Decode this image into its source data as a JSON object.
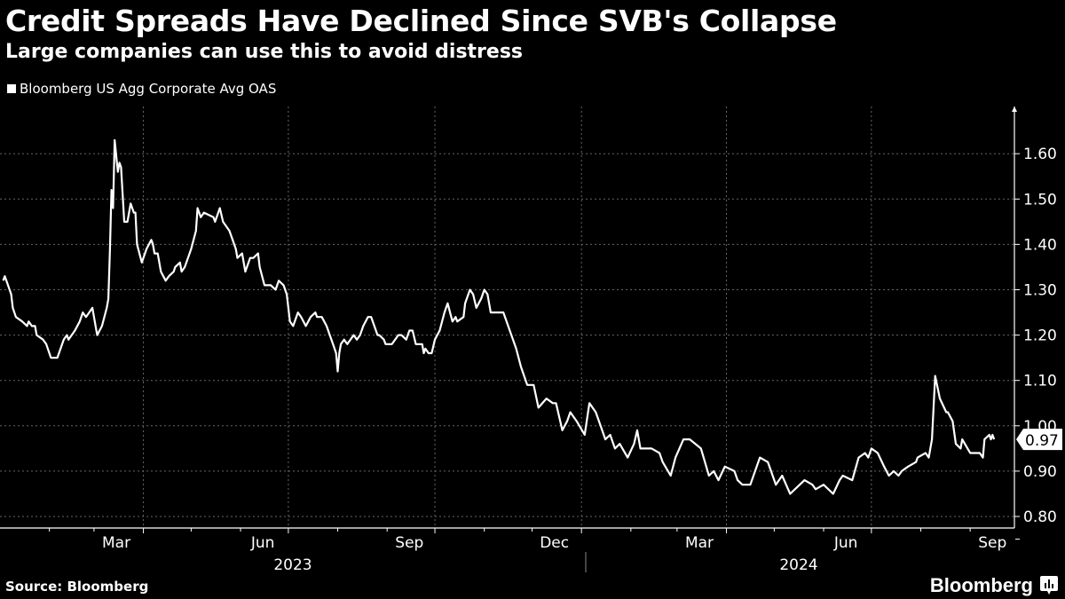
{
  "header": {
    "title": "Credit Spreads Have Declined Since SVB's Collapse",
    "subtitle": "Large companies can use this to avoid distress"
  },
  "footer": {
    "source": "Source: Bloomberg",
    "logo_text": "Bloomberg",
    "logo_icon": "bar-chart-bubble-icon"
  },
  "chart_data": {
    "type": "line",
    "title": "Credit Spreads Have Declined Since SVB's Collapse",
    "subtitle": "Large companies can use this to avoid distress",
    "legend_position": "top-left",
    "ylim": [
      0.78,
      1.69
    ],
    "y_axis_side": "right",
    "y_ticks": [
      "0.80",
      "0.90",
      "1.00",
      "1.10",
      "1.20",
      "1.30",
      "1.40",
      "1.50",
      "1.60"
    ],
    "x_tick_labels": [
      {
        "label": "Mar",
        "date": "2023-03-15"
      },
      {
        "label": "Jun",
        "date": "2023-06-15"
      },
      {
        "label": "Sep",
        "date": "2023-09-15"
      },
      {
        "label": "Dec",
        "date": "2023-12-15"
      },
      {
        "label": "Mar",
        "date": "2024-03-15"
      },
      {
        "label": "Jun",
        "date": "2024-06-15"
      },
      {
        "label": "Sep",
        "date": "2024-09-15"
      }
    ],
    "year_labels": [
      {
        "label": "2023",
        "date": "2023-07-01"
      },
      {
        "label": "2024",
        "date": "2024-05-01"
      }
    ],
    "grid": true,
    "colors": {
      "line": "#ffffff",
      "background": "#000000",
      "grid": "#666666"
    },
    "last_value_label": "0.97",
    "series": [
      {
        "name": "Bloomberg US Agg Corporate Avg OAS",
        "points": [
          [
            "2023-01-03",
            1.32
          ],
          [
            "2023-01-04",
            1.33
          ],
          [
            "2023-01-05",
            1.32
          ],
          [
            "2023-01-08",
            1.29
          ],
          [
            "2023-01-09",
            1.26
          ],
          [
            "2023-01-11",
            1.24
          ],
          [
            "2023-01-15",
            1.23
          ],
          [
            "2023-01-18",
            1.22
          ],
          [
            "2023-01-19",
            1.23
          ],
          [
            "2023-01-21",
            1.22
          ],
          [
            "2023-01-23",
            1.22
          ],
          [
            "2023-01-24",
            1.2
          ],
          [
            "2023-01-28",
            1.19
          ],
          [
            "2023-01-30",
            1.18
          ],
          [
            "2023-02-01",
            1.16
          ],
          [
            "2023-02-02",
            1.15
          ],
          [
            "2023-02-06",
            1.15
          ],
          [
            "2023-02-10",
            1.19
          ],
          [
            "2023-02-12",
            1.2
          ],
          [
            "2023-02-13",
            1.19
          ],
          [
            "2023-02-17",
            1.21
          ],
          [
            "2023-02-20",
            1.23
          ],
          [
            "2023-02-22",
            1.25
          ],
          [
            "2023-02-24",
            1.24
          ],
          [
            "2023-02-26",
            1.25
          ],
          [
            "2023-02-28",
            1.26
          ],
          [
            "2023-03-02",
            1.22
          ],
          [
            "2023-03-03",
            1.2
          ],
          [
            "2023-03-06",
            1.22
          ],
          [
            "2023-03-09",
            1.26
          ],
          [
            "2023-03-10",
            1.28
          ],
          [
            "2023-03-11",
            1.39
          ],
          [
            "2023-03-12",
            1.52
          ],
          [
            "2023-03-13",
            1.48
          ],
          [
            "2023-03-14",
            1.63
          ],
          [
            "2023-03-16",
            1.56
          ],
          [
            "2023-03-17",
            1.58
          ],
          [
            "2023-03-18",
            1.57
          ],
          [
            "2023-03-20",
            1.45
          ],
          [
            "2023-03-22",
            1.45
          ],
          [
            "2023-03-24",
            1.49
          ],
          [
            "2023-03-26",
            1.47
          ],
          [
            "2023-03-27",
            1.47
          ],
          [
            "2023-03-28",
            1.4
          ],
          [
            "2023-03-31",
            1.36
          ],
          [
            "2023-04-03",
            1.39
          ],
          [
            "2023-04-06",
            1.41
          ],
          [
            "2023-04-07",
            1.4
          ],
          [
            "2023-04-08",
            1.38
          ],
          [
            "2023-04-10",
            1.38
          ],
          [
            "2023-04-12",
            1.34
          ],
          [
            "2023-04-15",
            1.32
          ],
          [
            "2023-04-17",
            1.33
          ],
          [
            "2023-04-20",
            1.34
          ],
          [
            "2023-04-21",
            1.35
          ],
          [
            "2023-04-24",
            1.36
          ],
          [
            "2023-04-25",
            1.34
          ],
          [
            "2023-04-27",
            1.35
          ],
          [
            "2023-04-29",
            1.37
          ],
          [
            "2023-05-01",
            1.39
          ],
          [
            "2023-05-04",
            1.43
          ],
          [
            "2023-05-05",
            1.48
          ],
          [
            "2023-05-07",
            1.46
          ],
          [
            "2023-05-09",
            1.47
          ],
          [
            "2023-05-15",
            1.46
          ],
          [
            "2023-05-16",
            1.45
          ],
          [
            "2023-05-18",
            1.47
          ],
          [
            "2023-05-19",
            1.48
          ],
          [
            "2023-05-21",
            1.45
          ],
          [
            "2023-05-25",
            1.43
          ],
          [
            "2023-05-27",
            1.41
          ],
          [
            "2023-05-29",
            1.39
          ],
          [
            "2023-05-30",
            1.37
          ],
          [
            "2023-06-02",
            1.38
          ],
          [
            "2023-06-04",
            1.34
          ],
          [
            "2023-06-07",
            1.37
          ],
          [
            "2023-06-09",
            1.37
          ],
          [
            "2023-06-12",
            1.38
          ],
          [
            "2023-06-13",
            1.35
          ],
          [
            "2023-06-16",
            1.31
          ],
          [
            "2023-06-20",
            1.31
          ],
          [
            "2023-06-23",
            1.3
          ],
          [
            "2023-06-25",
            1.32
          ],
          [
            "2023-06-28",
            1.31
          ],
          [
            "2023-06-30",
            1.29
          ],
          [
            "2023-07-02",
            1.23
          ],
          [
            "2023-07-04",
            1.22
          ],
          [
            "2023-07-07",
            1.25
          ],
          [
            "2023-07-09",
            1.24
          ],
          [
            "2023-07-12",
            1.22
          ],
          [
            "2023-07-15",
            1.24
          ],
          [
            "2023-07-18",
            1.25
          ],
          [
            "2023-07-19",
            1.24
          ],
          [
            "2023-07-22",
            1.24
          ],
          [
            "2023-07-25",
            1.22
          ],
          [
            "2023-07-27",
            1.2
          ],
          [
            "2023-07-29",
            1.18
          ],
          [
            "2023-07-31",
            1.16
          ],
          [
            "2023-08-01",
            1.12
          ],
          [
            "2023-08-02",
            1.16
          ],
          [
            "2023-08-03",
            1.18
          ],
          [
            "2023-08-05",
            1.19
          ],
          [
            "2023-08-07",
            1.18
          ],
          [
            "2023-08-11",
            1.2
          ],
          [
            "2023-08-13",
            1.19
          ],
          [
            "2023-08-15",
            1.2
          ],
          [
            "2023-08-17",
            1.22
          ],
          [
            "2023-08-20",
            1.24
          ],
          [
            "2023-08-22",
            1.24
          ],
          [
            "2023-08-24",
            1.22
          ],
          [
            "2023-08-26",
            1.2
          ],
          [
            "2023-08-27",
            1.2
          ],
          [
            "2023-08-30",
            1.19
          ],
          [
            "2023-08-31",
            1.18
          ],
          [
            "2023-09-04",
            1.18
          ],
          [
            "2023-09-08",
            1.2
          ],
          [
            "2023-09-10",
            1.2
          ],
          [
            "2023-09-13",
            1.19
          ],
          [
            "2023-09-15",
            1.21
          ],
          [
            "2023-09-17",
            1.21
          ],
          [
            "2023-09-19",
            1.18
          ],
          [
            "2023-09-23",
            1.18
          ],
          [
            "2023-09-24",
            1.16
          ],
          [
            "2023-09-25",
            1.17
          ],
          [
            "2023-09-27",
            1.16
          ],
          [
            "2023-09-29",
            1.16
          ],
          [
            "2023-10-01",
            1.19
          ],
          [
            "2023-10-04",
            1.21
          ],
          [
            "2023-10-07",
            1.25
          ],
          [
            "2023-10-09",
            1.27
          ],
          [
            "2023-10-12",
            1.23
          ],
          [
            "2023-10-14",
            1.24
          ],
          [
            "2023-10-15",
            1.23
          ],
          [
            "2023-10-19",
            1.24
          ],
          [
            "2023-10-20",
            1.27
          ],
          [
            "2023-10-23",
            1.3
          ],
          [
            "2023-10-25",
            1.29
          ],
          [
            "2023-10-27",
            1.26
          ],
          [
            "2023-10-30",
            1.28
          ],
          [
            "2023-11-01",
            1.3
          ],
          [
            "2023-11-03",
            1.29
          ],
          [
            "2023-11-05",
            1.25
          ],
          [
            "2023-11-10",
            1.25
          ],
          [
            "2023-11-13",
            1.25
          ],
          [
            "2023-11-16",
            1.22
          ],
          [
            "2023-11-21",
            1.17
          ],
          [
            "2023-11-24",
            1.13
          ],
          [
            "2023-11-28",
            1.09
          ],
          [
            "2023-12-02",
            1.09
          ],
          [
            "2023-12-05",
            1.04
          ],
          [
            "2023-12-10",
            1.06
          ],
          [
            "2023-12-14",
            1.05
          ],
          [
            "2023-12-16",
            1.05
          ],
          [
            "2023-12-20",
            0.99
          ],
          [
            "2023-12-23",
            1.01
          ],
          [
            "2023-12-25",
            1.03
          ],
          [
            "2023-12-29",
            1.01
          ],
          [
            "2024-01-03",
            0.98
          ],
          [
            "2024-01-06",
            1.05
          ],
          [
            "2024-01-10",
            1.03
          ],
          [
            "2024-01-13",
            1.0
          ],
          [
            "2024-01-16",
            0.97
          ],
          [
            "2024-01-19",
            0.98
          ],
          [
            "2024-01-22",
            0.95
          ],
          [
            "2024-01-25",
            0.96
          ],
          [
            "2024-01-30",
            0.93
          ],
          [
            "2024-02-03",
            0.96
          ],
          [
            "2024-02-05",
            0.99
          ],
          [
            "2024-02-07",
            0.95
          ],
          [
            "2024-02-14",
            0.95
          ],
          [
            "2024-02-19",
            0.94
          ],
          [
            "2024-02-21",
            0.92
          ],
          [
            "2024-02-26",
            0.89
          ],
          [
            "2024-02-29",
            0.93
          ],
          [
            "2024-03-05",
            0.97
          ],
          [
            "2024-03-09",
            0.97
          ],
          [
            "2024-03-16",
            0.95
          ],
          [
            "2024-03-21",
            0.89
          ],
          [
            "2024-03-24",
            0.9
          ],
          [
            "2024-03-27",
            0.88
          ],
          [
            "2024-03-31",
            0.91
          ],
          [
            "2024-04-06",
            0.9
          ],
          [
            "2024-04-08",
            0.88
          ],
          [
            "2024-04-11",
            0.87
          ],
          [
            "2024-04-16",
            0.87
          ],
          [
            "2024-04-22",
            0.93
          ],
          [
            "2024-04-27",
            0.92
          ],
          [
            "2024-04-29",
            0.9
          ],
          [
            "2024-05-02",
            0.87
          ],
          [
            "2024-05-06",
            0.89
          ],
          [
            "2024-05-11",
            0.85
          ],
          [
            "2024-05-14",
            0.86
          ],
          [
            "2024-05-20",
            0.88
          ],
          [
            "2024-05-25",
            0.87
          ],
          [
            "2024-05-27",
            0.86
          ],
          [
            "2024-06-01",
            0.87
          ],
          [
            "2024-06-07",
            0.85
          ],
          [
            "2024-06-11",
            0.88
          ],
          [
            "2024-06-13",
            0.89
          ],
          [
            "2024-06-19",
            0.88
          ],
          [
            "2024-06-23",
            0.93
          ],
          [
            "2024-06-27",
            0.94
          ],
          [
            "2024-06-29",
            0.93
          ],
          [
            "2024-07-01",
            0.95
          ],
          [
            "2024-07-05",
            0.94
          ],
          [
            "2024-07-09",
            0.91
          ],
          [
            "2024-07-12",
            0.89
          ],
          [
            "2024-07-15",
            0.9
          ],
          [
            "2024-07-18",
            0.89
          ],
          [
            "2024-07-20",
            0.9
          ],
          [
            "2024-07-24",
            0.91
          ],
          [
            "2024-07-29",
            0.92
          ],
          [
            "2024-07-30",
            0.93
          ],
          [
            "2024-08-04",
            0.94
          ],
          [
            "2024-08-06",
            0.93
          ],
          [
            "2024-08-08",
            0.97
          ],
          [
            "2024-08-10",
            1.11
          ],
          [
            "2024-08-13",
            1.06
          ],
          [
            "2024-08-17",
            1.03
          ],
          [
            "2024-08-18",
            1.03
          ],
          [
            "2024-08-21",
            1.01
          ],
          [
            "2024-08-23",
            0.96
          ],
          [
            "2024-08-26",
            0.95
          ],
          [
            "2024-08-27",
            0.97
          ],
          [
            "2024-09-01",
            0.94
          ],
          [
            "2024-09-07",
            0.94
          ],
          [
            "2024-09-09",
            0.93
          ],
          [
            "2024-09-10",
            0.97
          ],
          [
            "2024-09-13",
            0.98
          ],
          [
            "2024-09-14",
            0.97
          ],
          [
            "2024-09-15",
            0.98
          ],
          [
            "2024-09-16",
            0.97
          ]
        ]
      }
    ]
  }
}
